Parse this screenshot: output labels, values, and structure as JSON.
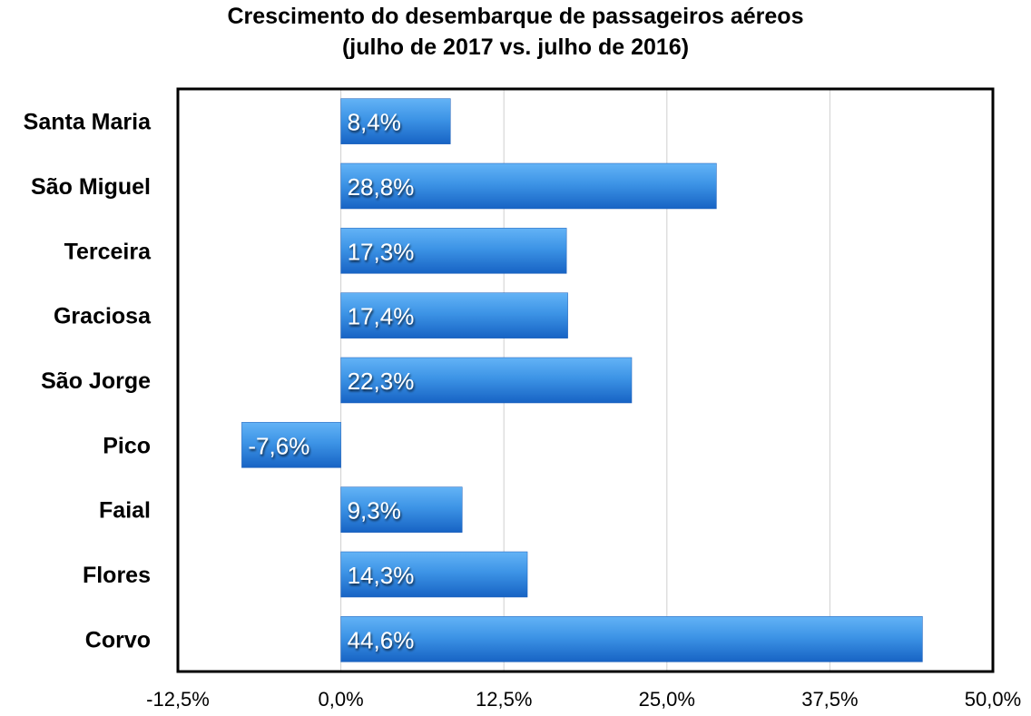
{
  "chart_data": {
    "type": "bar",
    "orientation": "horizontal",
    "title": "Crescimento do desembarque de passageiros aéreos",
    "subtitle": "(julho de 2017 vs. julho de 2016)",
    "categories": [
      "Santa Maria",
      "São Miguel",
      "Terceira",
      "Graciosa",
      "São Jorge",
      "Pico",
      "Faial",
      "Flores",
      "Corvo"
    ],
    "values": [
      8.4,
      28.8,
      17.3,
      17.4,
      22.3,
      -7.6,
      9.3,
      14.3,
      44.6
    ],
    "data_labels": [
      "8,4%",
      "28,8%",
      "17,3%",
      "17,4%",
      "22,3%",
      "-7,6%",
      "9,3%",
      "14,3%",
      "44,6%"
    ],
    "xlim": [
      -12.5,
      50
    ],
    "xticks": [
      -12.5,
      0,
      12.5,
      25,
      37.5,
      50
    ],
    "xtick_labels": [
      "-12,5%",
      "0,0%",
      "12,5%",
      "25,0%",
      "37,5%",
      "50,0%"
    ],
    "xlabel": "",
    "ylabel": "",
    "grid": true,
    "bar_color": "#2a7fd8"
  }
}
